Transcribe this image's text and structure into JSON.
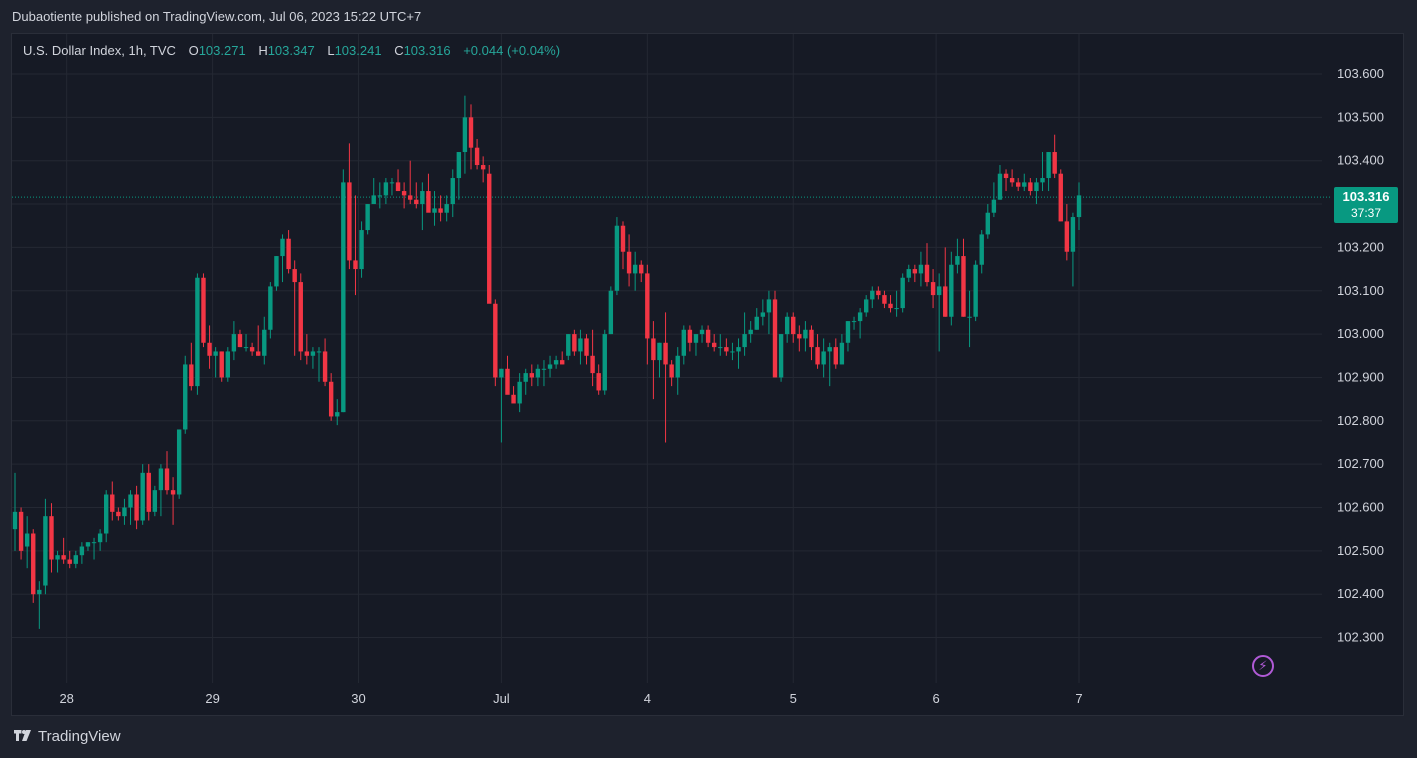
{
  "header": {
    "published_text": "Dubaotiente published on TradingView.com, Jul 06, 2023 15:22 UTC+7"
  },
  "legend": {
    "symbol": "U.S. Dollar Index, 1h, TVC",
    "open_label": "O",
    "open": "103.271",
    "high_label": "H",
    "high": "103.347",
    "low_label": "L",
    "low": "103.241",
    "close_label": "C",
    "close": "103.316",
    "change": "+0.044 (+0.04%)"
  },
  "price_tag": {
    "price": "103.316",
    "countdown": "37:37"
  },
  "footer": {
    "brand": "TradingView"
  },
  "colors": {
    "up": "#089981",
    "down": "#f23645",
    "background": "#161a25",
    "grid": "#242833",
    "last_price_line": "#089981",
    "alert_icon": "#b05ad6"
  },
  "icons": {
    "alert": "lightning-bolt-icon",
    "brand": "tradingview-logo-icon"
  },
  "chart_data": {
    "type": "candlestick",
    "symbol": "U.S. Dollar Index",
    "interval": "1h",
    "ylim": [
      102.2,
      103.65
    ],
    "y_ticks": [
      "103.600",
      "103.500",
      "103.400",
      "103.300",
      "103.200",
      "103.100",
      "103.000",
      "102.900",
      "102.800",
      "102.700",
      "102.600",
      "102.500",
      "102.400",
      "102.300"
    ],
    "x_ticks": [
      "28",
      "29",
      "30",
      "Jul",
      "4",
      "5",
      "6",
      "7"
    ],
    "x_tick_index": [
      8.5,
      32.5,
      56.5,
      80,
      104,
      128,
      151.5,
      175
    ],
    "last_price": 103.316,
    "candles_ohlc": [
      [
        102.55,
        102.68,
        102.5,
        102.59
      ],
      [
        102.59,
        102.6,
        102.48,
        102.5
      ],
      [
        102.51,
        102.58,
        102.46,
        102.54
      ],
      [
        102.54,
        102.55,
        102.38,
        102.4
      ],
      [
        102.4,
        102.43,
        102.32,
        102.41
      ],
      [
        102.42,
        102.62,
        102.4,
        102.58
      ],
      [
        102.58,
        102.61,
        102.45,
        102.48
      ],
      [
        102.48,
        102.5,
        102.45,
        102.49
      ],
      [
        102.49,
        102.53,
        102.47,
        102.48
      ],
      [
        102.48,
        102.5,
        102.46,
        102.47
      ],
      [
        102.47,
        102.5,
        102.46,
        102.49
      ],
      [
        102.49,
        102.52,
        102.47,
        102.51
      ],
      [
        102.51,
        102.52,
        102.5,
        102.52
      ],
      [
        102.52,
        102.53,
        102.48,
        102.52
      ],
      [
        102.52,
        102.55,
        102.5,
        102.54
      ],
      [
        102.54,
        102.64,
        102.52,
        102.63
      ],
      [
        102.63,
        102.66,
        102.57,
        102.59
      ],
      [
        102.59,
        102.6,
        102.57,
        102.58
      ],
      [
        102.58,
        102.62,
        102.56,
        102.6
      ],
      [
        102.6,
        102.64,
        102.56,
        102.63
      ],
      [
        102.63,
        102.65,
        102.55,
        102.57
      ],
      [
        102.57,
        102.7,
        102.56,
        102.68
      ],
      [
        102.68,
        102.7,
        102.57,
        102.59
      ],
      [
        102.59,
        102.65,
        102.58,
        102.64
      ],
      [
        102.64,
        102.7,
        102.58,
        102.69
      ],
      [
        102.69,
        102.73,
        102.63,
        102.64
      ],
      [
        102.64,
        102.67,
        102.56,
        102.63
      ],
      [
        102.63,
        102.78,
        102.62,
        102.78
      ],
      [
        102.78,
        102.95,
        102.77,
        102.93
      ],
      [
        102.93,
        102.98,
        102.87,
        102.88
      ],
      [
        102.88,
        103.14,
        102.86,
        103.13
      ],
      [
        103.13,
        103.14,
        102.97,
        102.98
      ],
      [
        102.98,
        103.02,
        102.92,
        102.95
      ],
      [
        102.95,
        102.97,
        102.9,
        102.96
      ],
      [
        102.96,
        102.96,
        102.89,
        102.9
      ],
      [
        102.9,
        102.97,
        102.89,
        102.96
      ],
      [
        102.96,
        103.03,
        102.94,
        103.0
      ],
      [
        103.0,
        103.01,
        102.97,
        102.97
      ],
      [
        102.97,
        103.0,
        102.96,
        102.97
      ],
      [
        102.97,
        102.98,
        102.95,
        102.96
      ],
      [
        102.96,
        103.02,
        102.95,
        102.95
      ],
      [
        102.95,
        103.04,
        102.93,
        103.01
      ],
      [
        103.01,
        103.12,
        102.99,
        103.11
      ],
      [
        103.11,
        103.18,
        103.1,
        103.18
      ],
      [
        103.18,
        103.23,
        103.12,
        103.22
      ],
      [
        103.22,
        103.24,
        103.14,
        103.15
      ],
      [
        103.15,
        103.17,
        102.95,
        103.12
      ],
      [
        103.12,
        103.14,
        102.94,
        102.96
      ],
      [
        102.96,
        103.0,
        102.93,
        102.95
      ],
      [
        102.95,
        102.97,
        102.92,
        102.96
      ],
      [
        102.96,
        102.97,
        102.89,
        102.96
      ],
      [
        102.96,
        102.99,
        102.88,
        102.89
      ],
      [
        102.89,
        102.91,
        102.8,
        102.81
      ],
      [
        102.81,
        102.85,
        102.79,
        102.82
      ],
      [
        102.82,
        103.38,
        102.82,
        103.35
      ],
      [
        103.35,
        103.44,
        103.15,
        103.17
      ],
      [
        103.17,
        103.32,
        103.09,
        103.15
      ],
      [
        103.15,
        103.26,
        103.13,
        103.24
      ],
      [
        103.24,
        103.3,
        103.23,
        103.3
      ],
      [
        103.3,
        103.36,
        103.31,
        103.32
      ],
      [
        103.32,
        103.35,
        103.29,
        103.32
      ],
      [
        103.32,
        103.36,
        103.3,
        103.35
      ],
      [
        103.35,
        103.36,
        103.32,
        103.35
      ],
      [
        103.35,
        103.38,
        103.33,
        103.33
      ],
      [
        103.33,
        103.35,
        103.29,
        103.32
      ],
      [
        103.32,
        103.4,
        103.3,
        103.31
      ],
      [
        103.31,
        103.35,
        103.29,
        103.3
      ],
      [
        103.3,
        103.35,
        103.24,
        103.33
      ],
      [
        103.33,
        103.37,
        103.29,
        103.28
      ],
      [
        103.28,
        103.33,
        103.25,
        103.29
      ],
      [
        103.29,
        103.32,
        103.26,
        103.28
      ],
      [
        103.28,
        103.32,
        103.26,
        103.3
      ],
      [
        103.3,
        103.38,
        103.27,
        103.36
      ],
      [
        103.36,
        103.42,
        103.31,
        103.42
      ],
      [
        103.42,
        103.55,
        103.37,
        103.5
      ],
      [
        103.5,
        103.53,
        103.38,
        103.43
      ],
      [
        103.43,
        103.45,
        103.38,
        103.39
      ],
      [
        103.39,
        103.41,
        103.35,
        103.38
      ],
      [
        103.37,
        103.39,
        103.09,
        103.07
      ],
      [
        103.07,
        103.08,
        102.88,
        102.9
      ],
      [
        102.9,
        102.92,
        102.75,
        102.92
      ],
      [
        102.92,
        102.95,
        102.87,
        102.86
      ],
      [
        102.86,
        102.88,
        102.85,
        102.84
      ],
      [
        102.84,
        102.91,
        102.82,
        102.89
      ],
      [
        102.89,
        102.92,
        102.86,
        102.91
      ],
      [
        102.91,
        102.93,
        102.88,
        102.9
      ],
      [
        102.9,
        102.93,
        102.88,
        102.92
      ],
      [
        102.92,
        102.94,
        102.88,
        102.92
      ],
      [
        102.92,
        102.95,
        102.9,
        102.93
      ],
      [
        102.93,
        102.95,
        102.92,
        102.94
      ],
      [
        102.94,
        102.96,
        102.93,
        102.93
      ],
      [
        102.95,
        103.0,
        102.94,
        103.0
      ],
      [
        103.0,
        103.01,
        102.95,
        102.96
      ],
      [
        102.96,
        103.01,
        102.93,
        102.99
      ],
      [
        102.99,
        103.0,
        102.93,
        102.95
      ],
      [
        102.95,
        103.01,
        102.88,
        102.91
      ],
      [
        102.91,
        102.93,
        102.86,
        102.87
      ],
      [
        102.87,
        103.01,
        102.86,
        103.0
      ],
      [
        103.0,
        103.11,
        103.0,
        103.1
      ],
      [
        103.1,
        103.27,
        103.09,
        103.25
      ],
      [
        103.25,
        103.26,
        103.15,
        103.19
      ],
      [
        103.19,
        103.23,
        103.11,
        103.14
      ],
      [
        103.14,
        103.19,
        103.1,
        103.16
      ],
      [
        103.16,
        103.17,
        103.12,
        103.14
      ],
      [
        103.14,
        103.16,
        102.93,
        102.99
      ],
      [
        102.99,
        103.03,
        102.85,
        102.94
      ],
      [
        102.94,
        102.98,
        102.9,
        102.98
      ],
      [
        102.98,
        103.05,
        102.75,
        102.93
      ],
      [
        102.93,
        102.94,
        102.88,
        102.9
      ],
      [
        102.9,
        102.97,
        102.86,
        102.95
      ],
      [
        102.95,
        103.02,
        102.93,
        103.01
      ],
      [
        103.01,
        103.02,
        102.96,
        102.98
      ],
      [
        102.98,
        103.0,
        102.95,
        103.0
      ],
      [
        103.0,
        103.02,
        102.98,
        103.01
      ],
      [
        103.01,
        103.02,
        102.97,
        102.98
      ],
      [
        102.98,
        103.0,
        102.96,
        102.97
      ],
      [
        102.97,
        103.0,
        102.95,
        102.97
      ],
      [
        102.97,
        102.99,
        102.95,
        102.96
      ],
      [
        102.96,
        102.98,
        102.94,
        102.96
      ],
      [
        102.96,
        102.99,
        102.92,
        102.97
      ],
      [
        102.97,
        103.05,
        102.95,
        103.0
      ],
      [
        103.0,
        103.03,
        102.98,
        103.01
      ],
      [
        103.01,
        103.06,
        103.01,
        103.04
      ],
      [
        103.04,
        103.08,
        103.02,
        103.05
      ],
      [
        103.05,
        103.1,
        103.0,
        103.08
      ],
      [
        103.08,
        103.1,
        102.9,
        102.9
      ],
      [
        102.9,
        103.0,
        102.89,
        103.0
      ],
      [
        103.0,
        103.05,
        102.98,
        103.04
      ],
      [
        103.04,
        103.05,
        102.98,
        103.0
      ],
      [
        103.0,
        103.02,
        102.96,
        102.99
      ],
      [
        102.99,
        103.03,
        102.96,
        103.01
      ],
      [
        103.01,
        103.02,
        102.94,
        102.97
      ],
      [
        102.97,
        103.0,
        102.92,
        102.93
      ],
      [
        102.93,
        102.99,
        102.9,
        102.96
      ],
      [
        102.96,
        102.98,
        102.88,
        102.97
      ],
      [
        102.97,
        102.99,
        102.92,
        102.93
      ],
      [
        102.93,
        103.0,
        102.93,
        102.98
      ],
      [
        102.98,
        103.03,
        102.96,
        103.03
      ],
      [
        103.03,
        103.04,
        103.01,
        103.03
      ],
      [
        103.03,
        103.06,
        102.99,
        103.05
      ],
      [
        103.05,
        103.09,
        103.04,
        103.08
      ],
      [
        103.08,
        103.11,
        103.06,
        103.1
      ],
      [
        103.1,
        103.11,
        103.08,
        103.09
      ],
      [
        103.09,
        103.1,
        103.06,
        103.07
      ],
      [
        103.07,
        103.09,
        103.05,
        103.06
      ],
      [
        103.06,
        103.1,
        103.04,
        103.06
      ],
      [
        103.06,
        103.14,
        103.05,
        103.13
      ],
      [
        103.13,
        103.16,
        103.12,
        103.15
      ],
      [
        103.15,
        103.16,
        103.12,
        103.14
      ],
      [
        103.14,
        103.19,
        103.11,
        103.16
      ],
      [
        103.16,
        103.21,
        103.11,
        103.12
      ],
      [
        103.12,
        103.15,
        103.06,
        103.09
      ],
      [
        103.09,
        103.14,
        102.96,
        103.11
      ],
      [
        103.11,
        103.2,
        103.04,
        103.04
      ],
      [
        103.04,
        103.19,
        103.02,
        103.16
      ],
      [
        103.16,
        103.22,
        103.14,
        103.18
      ],
      [
        103.18,
        103.22,
        103.04,
        103.04
      ],
      [
        103.04,
        103.1,
        102.97,
        103.04
      ],
      [
        103.04,
        103.17,
        103.03,
        103.16
      ],
      [
        103.16,
        103.24,
        103.14,
        103.23
      ],
      [
        103.23,
        103.3,
        103.22,
        103.28
      ],
      [
        103.28,
        103.35,
        103.27,
        103.31
      ],
      [
        103.31,
        103.39,
        103.31,
        103.37
      ],
      [
        103.37,
        103.38,
        103.33,
        103.36
      ],
      [
        103.36,
        103.38,
        103.34,
        103.35
      ],
      [
        103.35,
        103.36,
        103.33,
        103.34
      ],
      [
        103.34,
        103.37,
        103.33,
        103.35
      ],
      [
        103.35,
        103.36,
        103.32,
        103.33
      ],
      [
        103.33,
        103.36,
        103.3,
        103.35
      ],
      [
        103.35,
        103.42,
        103.33,
        103.36
      ],
      [
        103.36,
        103.42,
        103.33,
        103.42
      ],
      [
        103.42,
        103.46,
        103.36,
        103.37
      ],
      [
        103.37,
        103.38,
        103.26,
        103.26
      ],
      [
        103.26,
        103.3,
        103.17,
        103.19
      ],
      [
        103.19,
        103.28,
        103.11,
        103.27
      ],
      [
        103.27,
        103.35,
        103.24,
        103.32
      ]
    ]
  }
}
